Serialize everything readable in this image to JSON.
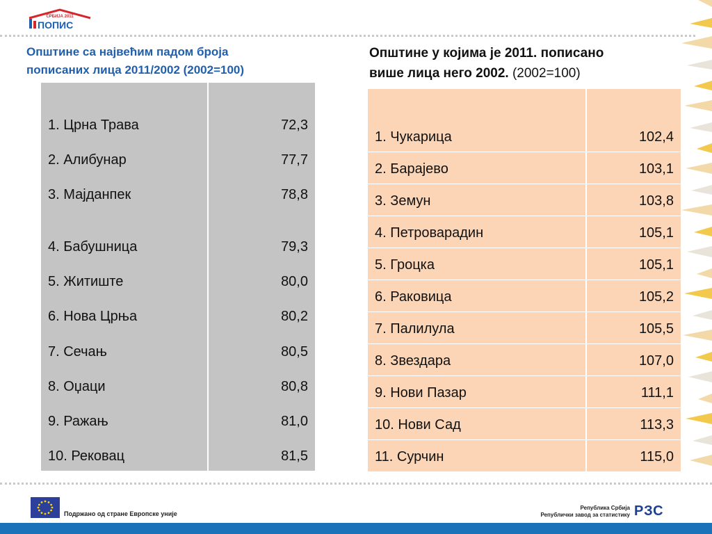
{
  "header": {
    "logo_top": "СРБИЈА 2011",
    "logo_main": "ПОПИС"
  },
  "left": {
    "title_line1": "Општине са највећим падом броја",
    "title_line2": "пописаних лица 2011/2002 (2002=100)",
    "rows": [
      {
        "name": "1. Црна Трава",
        "value": "72,3"
      },
      {
        "name": "2. Алибунар",
        "value": "77,7"
      },
      {
        "name": "3. Мајданпек",
        "value": "78,8"
      },
      {
        "name": "4. Бабушница",
        "value": "79,3"
      },
      {
        "name": "5. Житиште",
        "value": "80,0"
      },
      {
        "name": "6. Нова Црња",
        "value": "80,2"
      },
      {
        "name": "7. Сечањ",
        "value": "80,5"
      },
      {
        "name": "8. Оџаци",
        "value": "80,8"
      },
      {
        "name": "9. Ражањ",
        "value": "81,0"
      },
      {
        "name": "10. Рековац",
        "value": "81,5"
      }
    ]
  },
  "right": {
    "title_line1": "Општине у којима је 2011. пописано",
    "title_line2_bold": "више лица него 2002.",
    "title_line2_normal": "(2002=100)",
    "rows": [
      {
        "name": "1. Чукарица",
        "value": "102,4"
      },
      {
        "name": "2. Барајево",
        "value": "103,1"
      },
      {
        "name": "3. Земун",
        "value": "103,8"
      },
      {
        "name": "4. Петроварадин",
        "value": "105,1"
      },
      {
        "name": "5. Гроцка",
        "value": "105,1"
      },
      {
        "name": "6. Раковица",
        "value": "105,2"
      },
      {
        "name": "7. Палилула",
        "value": "105,5"
      },
      {
        "name": "8. Звездара",
        "value": "107,0"
      },
      {
        "name": "9. Нови Пазар",
        "value": "111,1"
      },
      {
        "name": "10. Нови Сад",
        "value": "113,3"
      },
      {
        "name": "11. Сурчин",
        "value": "115,0"
      }
    ]
  },
  "footer": {
    "eu_text": "Подржано од стране Европске уније",
    "rzs_line1": "Република Србија",
    "rzs_line2": "Републички завод за статистику",
    "rzs_logo": "РЗС"
  }
}
